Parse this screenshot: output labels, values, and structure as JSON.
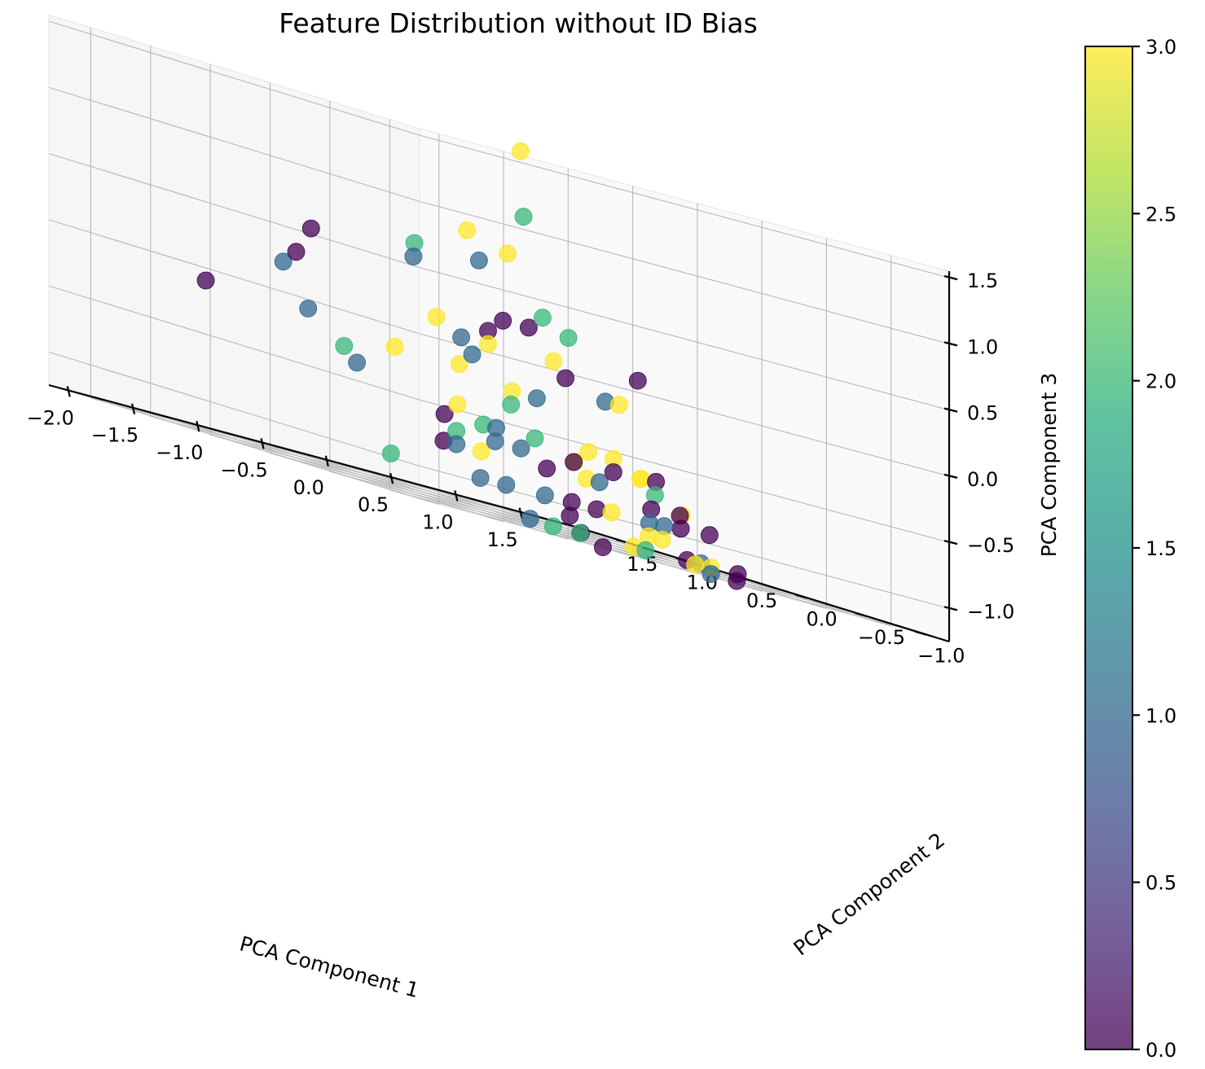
{
  "chart_data": {
    "type": "scatter",
    "projection": "3d",
    "title": "Feature Distribution without ID Bias",
    "xlabel": "PCA Component 1",
    "ylabel": "PCA Component 2",
    "zlabel": "PCA Component 3",
    "xlim": [
      -2.15,
      1.95
    ],
    "ylim": [
      -1.25,
      1.85
    ],
    "zlim": [
      -1.25,
      1.55
    ],
    "xticks": [
      -2.0,
      -1.5,
      -1.0,
      -0.5,
      0.0,
      0.5,
      1.0,
      1.5
    ],
    "yticks": [
      -1.0,
      -0.5,
      0.0,
      0.5,
      1.0,
      1.5
    ],
    "zticks": [
      -1.0,
      -0.5,
      0.0,
      0.5,
      1.0,
      1.5
    ],
    "xtick_labels": [
      "−2.0",
      "−1.5",
      "−1.0",
      "−0.5",
      "0.0",
      "0.5",
      "1.0",
      "1.5"
    ],
    "ytick_labels": [
      "−1.0",
      "−0.5",
      "0.0",
      "0.5",
      "1.0",
      "1.5"
    ],
    "ztick_labels": [
      "−1.0",
      "−0.5",
      "0.0",
      "0.5",
      "1.0",
      "1.5"
    ],
    "grid": true,
    "colormap": "viridis",
    "alpha": 0.75,
    "colorbar": {
      "range": [
        0.0,
        3.0
      ],
      "ticks": [
        0.0,
        0.5,
        1.0,
        1.5,
        2.0,
        2.5,
        3.0
      ],
      "tick_labels": [
        "0.0",
        "0.5",
        "1.0",
        "1.5",
        "2.0",
        "2.5",
        "3.0"
      ]
    },
    "points": [
      {
        "x": 0.9,
        "y": 1.2,
        "z": 1.5,
        "c": 3
      },
      {
        "x": 1.2,
        "y": 1.5,
        "z": 1.0,
        "c": 2
      },
      {
        "x": 0.3,
        "y": 1.0,
        "z": 0.8,
        "c": 3
      },
      {
        "x": 0.8,
        "y": 1.2,
        "z": 0.7,
        "c": 3
      },
      {
        "x": 0.3,
        "y": 0.9,
        "z": 0.6,
        "c": 1
      },
      {
        "x": -0.2,
        "y": 0.9,
        "z": 0.6,
        "c": 2
      },
      {
        "x": -0.3,
        "y": 0.8,
        "z": 0.5,
        "c": 1
      },
      {
        "x": -1.0,
        "y": 0.9,
        "z": 0.5,
        "c": 0
      },
      {
        "x": -1.3,
        "y": 0.7,
        "z": 0.3,
        "c": 0
      },
      {
        "x": -1.4,
        "y": 0.7,
        "z": 0.2,
        "c": 1
      },
      {
        "x": -2.0,
        "y": 0.7,
        "z": -0.1,
        "c": 0
      },
      {
        "x": -1.0,
        "y": 0.2,
        "z": -0.2,
        "c": 3
      },
      {
        "x": -1.3,
        "y": 0.6,
        "z": -0.1,
        "c": 1
      },
      {
        "x": -1.2,
        "y": 0.3,
        "z": -0.4,
        "c": 1
      },
      {
        "x": -1.3,
        "y": 0.3,
        "z": -0.3,
        "c": 2
      },
      {
        "x": -0.4,
        "y": 0.5,
        "z": 0.1,
        "c": 3
      },
      {
        "x": -0.3,
        "y": 0.4,
        "z": 0.0,
        "c": 1
      },
      {
        "x": -0.4,
        "y": 0.2,
        "z": -0.1,
        "c": 1
      },
      {
        "x": -0.5,
        "y": 0.2,
        "z": -0.2,
        "c": 3
      },
      {
        "x": 0.0,
        "y": 0.5,
        "z": 0.1,
        "c": 0
      },
      {
        "x": 0.0,
        "y": 0.5,
        "z": 0.0,
        "c": 3
      },
      {
        "x": 0.3,
        "y": 0.7,
        "z": 0.2,
        "c": 0
      },
      {
        "x": 0.5,
        "y": 0.7,
        "z": 0.2,
        "c": 0
      },
      {
        "x": 0.7,
        "y": 0.8,
        "z": 0.3,
        "c": 2
      },
      {
        "x": 0.9,
        "y": 0.8,
        "z": 0.2,
        "c": 2
      },
      {
        "x": 0.6,
        "y": 0.6,
        "z": 0.0,
        "c": 3
      },
      {
        "x": 0.6,
        "y": 0.5,
        "z": -0.1,
        "c": 0
      },
      {
        "x": 1.0,
        "y": 0.6,
        "z": -0.2,
        "c": 1
      },
      {
        "x": 1.2,
        "y": 0.7,
        "z": -0.2,
        "c": 3
      },
      {
        "x": 1.9,
        "y": 1.3,
        "z": 0.0,
        "c": 0
      },
      {
        "x": 0.0,
        "y": 0.3,
        "z": -0.3,
        "c": 3
      },
      {
        "x": 0.1,
        "y": 0.2,
        "z": -0.3,
        "c": 1
      },
      {
        "x": -0.1,
        "y": 0.2,
        "z": -0.4,
        "c": 2
      },
      {
        "x": -0.7,
        "y": 0.0,
        "z": -0.5,
        "c": 3
      },
      {
        "x": -0.5,
        "y": 0.0,
        "z": -0.6,
        "c": 2
      },
      {
        "x": -0.4,
        "y": 0.0,
        "z": -0.6,
        "c": 1
      },
      {
        "x": -0.5,
        "y": -0.1,
        "z": -0.7,
        "c": 1
      },
      {
        "x": -0.3,
        "y": -0.1,
        "z": -0.7,
        "c": 1
      },
      {
        "x": -0.1,
        "y": 0.0,
        "z": -0.6,
        "c": 2
      },
      {
        "x": -0.8,
        "y": 0.0,
        "z": -0.6,
        "c": 0
      },
      {
        "x": -0.8,
        "y": -0.1,
        "z": -0.7,
        "c": 2
      },
      {
        "x": -0.8,
        "y": -0.1,
        "z": -0.8,
        "c": 1
      },
      {
        "x": -0.9,
        "y": -0.1,
        "z": -0.8,
        "c": 0
      },
      {
        "x": -0.7,
        "y": -0.2,
        "z": -0.8,
        "c": 3
      },
      {
        "x": -0.1,
        "y": -0.1,
        "z": -0.8,
        "c": 0
      },
      {
        "x": 0.2,
        "y": 0.0,
        "z": -0.7,
        "c": 0
      },
      {
        "x": 0.3,
        "y": 0.1,
        "z": -0.7,
        "c": 3
      },
      {
        "x": 0.3,
        "y": 0.0,
        "z": -0.8,
        "c": 3
      },
      {
        "x": 0.4,
        "y": 0.0,
        "z": -0.8,
        "c": 1
      },
      {
        "x": 0.5,
        "y": 0.2,
        "z": -0.6,
        "c": 3
      },
      {
        "x": 0.6,
        "y": 0.1,
        "z": -0.6,
        "c": 3
      },
      {
        "x": 0.6,
        "y": 0.1,
        "z": -0.7,
        "c": 0
      },
      {
        "x": 0.9,
        "y": 0.2,
        "z": -0.7,
        "c": 3
      },
      {
        "x": 1.0,
        "y": 0.3,
        "z": -0.7,
        "c": 3
      },
      {
        "x": 1.3,
        "y": 0.5,
        "z": -0.7,
        "c": 0
      },
      {
        "x": -1.4,
        "y": -0.2,
        "z": -1.0,
        "c": 2
      },
      {
        "x": -0.8,
        "y": -0.3,
        "z": -1.0,
        "c": 1
      },
      {
        "x": -0.6,
        "y": -0.3,
        "z": -1.0,
        "c": 1
      },
      {
        "x": -0.3,
        "y": -0.3,
        "z": -1.0,
        "c": 1
      },
      {
        "x": 0.0,
        "y": -0.2,
        "z": -1.0,
        "c": 0
      },
      {
        "x": 0.1,
        "y": -0.3,
        "z": -1.0,
        "c": 0
      },
      {
        "x": 0.4,
        "y": -0.1,
        "z": -1.0,
        "c": 3
      },
      {
        "x": 0.6,
        "y": -0.2,
        "z": -1.0,
        "c": 1
      },
      {
        "x": 0.8,
        "y": 0.0,
        "z": -0.9,
        "c": 0
      },
      {
        "x": 0.9,
        "y": 0.0,
        "z": -1.0,
        "c": 1
      },
      {
        "x": 1.3,
        "y": 0.3,
        "z": -0.9,
        "c": 0
      },
      {
        "x": 1.2,
        "y": 0.4,
        "z": -0.8,
        "c": 2
      },
      {
        "x": 1.5,
        "y": 0.5,
        "z": -0.9,
        "c": 3
      },
      {
        "x": 1.4,
        "y": 0.4,
        "z": -1.0,
        "c": 0
      },
      {
        "x": 1.9,
        "y": 0.7,
        "z": -1.0,
        "c": 0
      },
      {
        "x": -0.2,
        "y": -0.4,
        "z": -1.1,
        "c": 0
      },
      {
        "x": 0.5,
        "y": -0.3,
        "z": -1.1,
        "c": 3
      },
      {
        "x": 0.7,
        "y": -0.2,
        "z": -1.1,
        "c": 3
      },
      {
        "x": -0.6,
        "y": -0.5,
        "z": -1.2,
        "c": 1
      },
      {
        "x": 0.2,
        "y": -0.5,
        "z": -1.2,
        "c": 3
      },
      {
        "x": 0.8,
        "y": -0.3,
        "z": -1.2,
        "c": 0
      },
      {
        "x": 1.0,
        "y": -0.2,
        "z": -1.2,
        "c": 1
      },
      {
        "x": -0.4,
        "y": -0.7,
        "z": -1.2,
        "c": 2
      },
      {
        "x": -0.3,
        "y": -0.6,
        "z": -1.2,
        "c": 0
      },
      {
        "x": 0.2,
        "y": -0.6,
        "z": -1.2,
        "c": 2
      },
      {
        "x": 0.8,
        "y": -0.5,
        "z": -1.2,
        "c": 3
      },
      {
        "x": 0.8,
        "y": -0.5,
        "z": -1.25,
        "c": 1
      },
      {
        "x": 0.4,
        "y": -0.8,
        "z": -1.2,
        "c": 3
      },
      {
        "x": 1.1,
        "y": -0.4,
        "z": -1.2,
        "c": 0
      },
      {
        "x": 1.0,
        "y": -0.5,
        "z": -1.25,
        "c": 0
      },
      {
        "x": -0.7,
        "y": -0.8,
        "z": -1.2,
        "c": 2
      },
      {
        "x": -0.5,
        "y": -1.0,
        "z": -1.25,
        "c": 0
      }
    ]
  }
}
